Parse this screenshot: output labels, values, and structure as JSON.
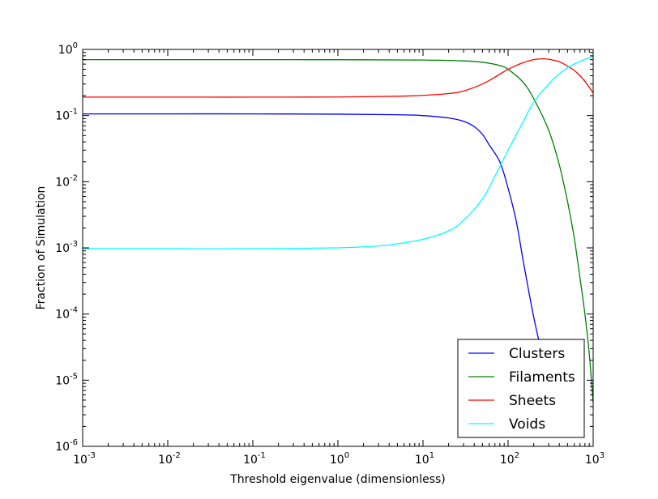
{
  "chart_data": {
    "type": "line",
    "title": "",
    "xlabel": "Threshold eigenvalue (dimensionless)",
    "ylabel": "Fraction of Simulation",
    "xscale": "log",
    "yscale": "log",
    "xlim": [
      0.001,
      1000
    ],
    "ylim": [
      1e-06,
      1
    ],
    "grid": false,
    "legend_position": "lower-right",
    "x_ticks": [
      {
        "base": "10",
        "exp": "-3"
      },
      {
        "base": "10",
        "exp": "-2"
      },
      {
        "base": "10",
        "exp": "-1"
      },
      {
        "base": "10",
        "exp": "0"
      },
      {
        "base": "10",
        "exp": "1"
      },
      {
        "base": "10",
        "exp": "2"
      },
      {
        "base": "10",
        "exp": "3"
      }
    ],
    "y_ticks": [
      {
        "base": "10",
        "exp": "-6"
      },
      {
        "base": "10",
        "exp": "-5"
      },
      {
        "base": "10",
        "exp": "-4"
      },
      {
        "base": "10",
        "exp": "-3"
      },
      {
        "base": "10",
        "exp": "-2"
      },
      {
        "base": "10",
        "exp": "-1"
      },
      {
        "base": "10",
        "exp": "0"
      }
    ],
    "series": [
      {
        "name": "Clusters",
        "color": "#0000ff",
        "x": [
          0.001,
          0.01,
          0.1,
          1,
          5,
          10,
          20,
          30,
          40,
          50,
          60,
          80,
          100,
          125,
          150,
          175,
          200,
          225,
          250
        ],
        "y": [
          0.106,
          0.106,
          0.106,
          0.105,
          0.103,
          0.1,
          0.092,
          0.082,
          0.068,
          0.052,
          0.036,
          0.02,
          0.008,
          0.0025,
          0.00065,
          0.00022,
          9e-05,
          4.5e-05,
          2.6e-05
        ]
      },
      {
        "name": "Filaments",
        "color": "#008000",
        "x": [
          0.001,
          0.01,
          0.1,
          1,
          10,
          30,
          50,
          80,
          100,
          150,
          200,
          300,
          400,
          500,
          600,
          700,
          800,
          900,
          1000
        ],
        "y": [
          0.7,
          0.7,
          0.7,
          0.699,
          0.69,
          0.67,
          0.64,
          0.57,
          0.5,
          0.32,
          0.18,
          0.06,
          0.018,
          0.005,
          0.0014,
          0.00035,
          0.0001,
          2.5e-05,
          4.5e-06
        ]
      },
      {
        "name": "Sheets",
        "color": "#ff0000",
        "x": [
          0.001,
          0.01,
          0.1,
          1,
          5,
          10,
          20,
          30,
          50,
          70,
          100,
          150,
          200,
          250,
          300,
          400,
          500,
          600,
          700,
          800,
          1000
        ],
        "y": [
          0.19,
          0.19,
          0.19,
          0.191,
          0.196,
          0.202,
          0.215,
          0.235,
          0.3,
          0.38,
          0.5,
          0.63,
          0.7,
          0.72,
          0.71,
          0.65,
          0.56,
          0.48,
          0.4,
          0.33,
          0.22
        ]
      },
      {
        "name": "Voids",
        "color": "#00ffff",
        "x": [
          0.001,
          0.01,
          0.1,
          1,
          3,
          5,
          10,
          20,
          30,
          50,
          70,
          100,
          150,
          200,
          300,
          400,
          500,
          700,
          1000
        ],
        "y": [
          0.00097,
          0.00097,
          0.00097,
          0.001,
          0.00107,
          0.00115,
          0.00135,
          0.0018,
          0.0026,
          0.0055,
          0.012,
          0.03,
          0.08,
          0.16,
          0.3,
          0.43,
          0.53,
          0.66,
          0.78
        ]
      }
    ]
  }
}
